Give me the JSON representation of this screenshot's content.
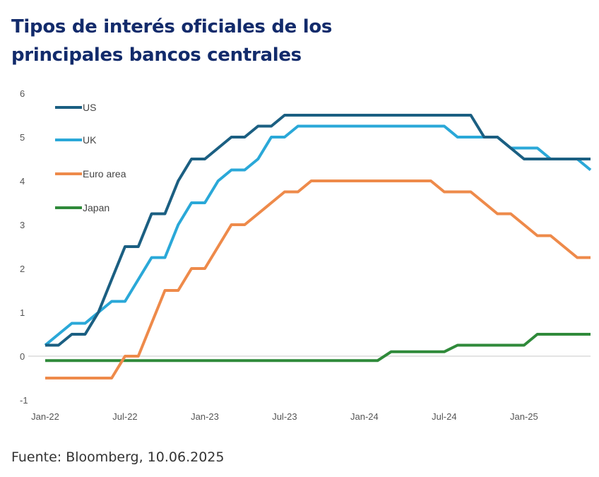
{
  "title_lines": [
    "Tipos de interés oficiales de los",
    "principales bancos centrales"
  ],
  "source": "Fuente: Bloomberg, 10.06.2025",
  "chart_data": {
    "type": "line",
    "title": "Tipos de interés oficiales de los principales bancos centrales",
    "xlabel": "",
    "ylabel": "",
    "x_tick_labels": [
      "Jan-22",
      "Jul-22",
      "Jan-23",
      "Jul-23",
      "Jan-24",
      "Jul-24",
      "Jan-25"
    ],
    "x_tick_index": [
      0,
      6,
      12,
      18,
      24,
      30,
      36
    ],
    "x_range": [
      0,
      41
    ],
    "ylim": [
      -1,
      6
    ],
    "y_ticks": [
      -1,
      0,
      1,
      2,
      3,
      4,
      5,
      6
    ],
    "legend_position": "top-left",
    "series": [
      {
        "name": "US",
        "color": "#1b5f82",
        "values": [
          0.25,
          0.25,
          0.5,
          0.5,
          1.0,
          1.75,
          2.5,
          2.5,
          3.25,
          3.25,
          4.0,
          4.5,
          4.5,
          4.75,
          5.0,
          5.0,
          5.25,
          5.25,
          5.5,
          5.5,
          5.5,
          5.5,
          5.5,
          5.5,
          5.5,
          5.5,
          5.5,
          5.5,
          5.5,
          5.5,
          5.5,
          5.5,
          5.5,
          5.0,
          5.0,
          4.75,
          4.5,
          4.5,
          4.5,
          4.5,
          4.5,
          4.5
        ]
      },
      {
        "name": "UK",
        "color": "#2aa8d8",
        "values": [
          0.25,
          0.5,
          0.75,
          0.75,
          1.0,
          1.25,
          1.25,
          1.75,
          2.25,
          2.25,
          3.0,
          3.5,
          3.5,
          4.0,
          4.25,
          4.25,
          4.5,
          5.0,
          5.0,
          5.25,
          5.25,
          5.25,
          5.25,
          5.25,
          5.25,
          5.25,
          5.25,
          5.25,
          5.25,
          5.25,
          5.25,
          5.0,
          5.0,
          5.0,
          5.0,
          4.75,
          4.75,
          4.75,
          4.5,
          4.5,
          4.5,
          4.25
        ]
      },
      {
        "name": "Euro area",
        "color": "#ee8a4a",
        "values": [
          -0.5,
          -0.5,
          -0.5,
          -0.5,
          -0.5,
          -0.5,
          0.0,
          0.0,
          0.75,
          1.5,
          1.5,
          2.0,
          2.0,
          2.5,
          3.0,
          3.0,
          3.25,
          3.5,
          3.75,
          3.75,
          4.0,
          4.0,
          4.0,
          4.0,
          4.0,
          4.0,
          4.0,
          4.0,
          4.0,
          4.0,
          3.75,
          3.75,
          3.75,
          3.5,
          3.25,
          3.25,
          3.0,
          2.75,
          2.75,
          2.5,
          2.25,
          2.25
        ]
      },
      {
        "name": "Japan",
        "color": "#2f8a3a",
        "values": [
          -0.1,
          -0.1,
          -0.1,
          -0.1,
          -0.1,
          -0.1,
          -0.1,
          -0.1,
          -0.1,
          -0.1,
          -0.1,
          -0.1,
          -0.1,
          -0.1,
          -0.1,
          -0.1,
          -0.1,
          -0.1,
          -0.1,
          -0.1,
          -0.1,
          -0.1,
          -0.1,
          -0.1,
          -0.1,
          -0.1,
          0.1,
          0.1,
          0.1,
          0.1,
          0.1,
          0.25,
          0.25,
          0.25,
          0.25,
          0.25,
          0.25,
          0.5,
          0.5,
          0.5,
          0.5,
          0.5
        ]
      }
    ]
  }
}
